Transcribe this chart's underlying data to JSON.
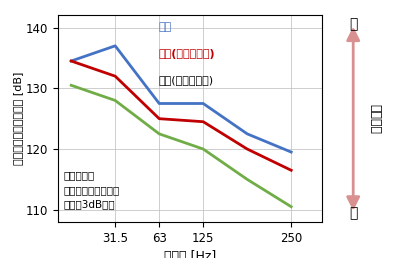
{
  "x": [
    0,
    1,
    2,
    3,
    4,
    5
  ],
  "x_tick_positions": [
    1,
    2,
    3,
    5
  ],
  "x_tick_labels": [
    "31.5",
    "63",
    "125",
    "250"
  ],
  "y_blue": [
    134.5,
    137.0,
    127.5,
    127.5,
    122.5,
    119.5
  ],
  "y_red": [
    134.5,
    132.0,
    125.0,
    124.5,
    120.0,
    116.5
  ],
  "y_green": [
    130.5,
    128.0,
    122.5,
    120.0,
    115.0,
    110.5
  ],
  "color_blue": "#4472C4",
  "color_red": "#C00000",
  "color_green": "#70AD47",
  "color_arrow": "#D99090",
  "ylabel": "インピーダンスレベル [dB]",
  "xlabel": "周波数 [Hz]",
  "ylim": [
    108,
    142
  ],
  "xlim": [
    -0.3,
    5.7
  ],
  "yticks": [
    110,
    120,
    130,
    140
  ],
  "annotation_line1": "予測精度を",
  "annotation_line2": "従来モデルに対して",
  "annotation_line3": "平均約3dB向上",
  "legend_blue": "実測",
  "legend_red": "予測(新規モデル)",
  "legend_green": "予測(従来モデル)",
  "arrow_high": "高",
  "arrow_low": "低",
  "arrow_mid": "遮音性能",
  "background_color": "#FFFFFF",
  "grid_color": "#BBBBBB"
}
